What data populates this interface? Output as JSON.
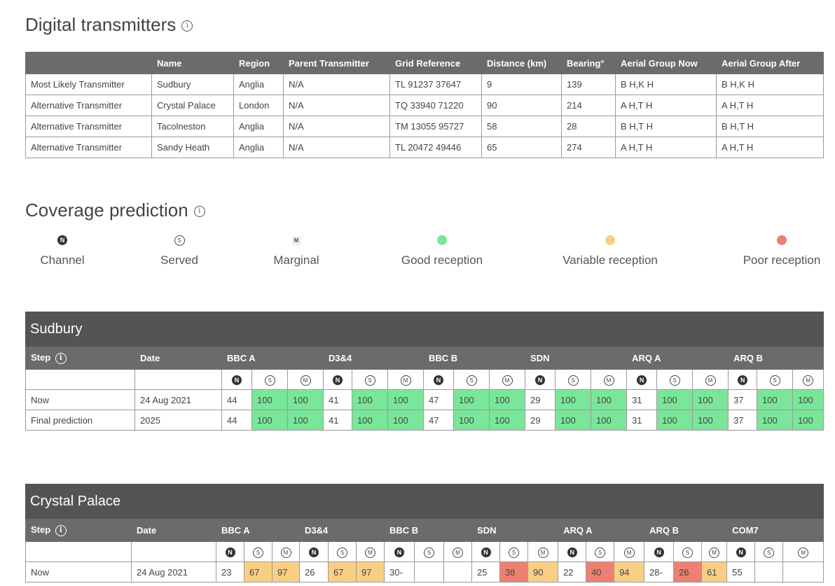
{
  "digital": {
    "title": "Digital transmitters",
    "headers": [
      "",
      "Name",
      "Region",
      "Parent Transmitter",
      "Grid Reference",
      "Distance (km)",
      "Bearing°",
      "Aerial Group Now",
      "Aerial Group After"
    ],
    "rows": [
      [
        "Most Likely Transmitter",
        "Sudbury",
        "Anglia",
        "N/A",
        "TL 91237 37647",
        "9",
        "139",
        "B H,K H",
        "B H,K H"
      ],
      [
        "Alternative Transmitter",
        "Crystal Palace",
        "London",
        "N/A",
        "TQ 33940 71220",
        "90",
        "214",
        "A H,T H",
        "A H,T H"
      ],
      [
        "Alternative Transmitter",
        "Tacolneston",
        "Anglia",
        "N/A",
        "TM 13055 95727",
        "58",
        "28",
        "B H,T H",
        "B H,T H"
      ],
      [
        "Alternative Transmitter",
        "Sandy Heath",
        "Anglia",
        "N/A",
        "TL 20472 49446",
        "65",
        "274",
        "A H,T H",
        "A H,T H"
      ]
    ]
  },
  "coverage": {
    "title": "Coverage prediction",
    "legend": {
      "channel": "Channel",
      "served": "Served",
      "marginal": "Marginal",
      "good": "Good reception",
      "variable": "Variable reception",
      "poor": "Poor reception"
    },
    "colors": {
      "good": "#7ae69a",
      "variable": "#f9cf86",
      "poor": "#ee8072"
    }
  },
  "sudbury": {
    "title": "Sudbury",
    "step_label": "Step",
    "date_label": "Date",
    "muxes": [
      "BBC A",
      "D3&4",
      "BBC B",
      "SDN",
      "ARQ A",
      "ARQ B"
    ],
    "rows": [
      {
        "step": "Now",
        "date": "24 Aug 2021",
        "cells": [
          "44",
          "100",
          "100",
          "41",
          "100",
          "100",
          "47",
          "100",
          "100",
          "29",
          "100",
          "100",
          "31",
          "100",
          "100",
          "37",
          "100",
          "100"
        ]
      },
      {
        "step": "Final prediction",
        "date": "2025",
        "cells": [
          "44",
          "100",
          "100",
          "41",
          "100",
          "100",
          "47",
          "100",
          "100",
          "29",
          "100",
          "100",
          "31",
          "100",
          "100",
          "37",
          "100",
          "100"
        ]
      }
    ]
  },
  "crystal": {
    "title": "Crystal Palace",
    "step_label": "Step",
    "date_label": "Date",
    "muxes": [
      "BBC A",
      "D3&4",
      "BBC B",
      "SDN",
      "ARQ A",
      "ARQ B",
      "COM7"
    ],
    "rows": [
      {
        "step": "Now",
        "date": "24 Aug 2021",
        "cells": [
          "23",
          "67",
          "97",
          "26",
          "67",
          "97",
          "30-",
          "",
          "",
          "25",
          "38",
          "90",
          "22",
          "40",
          "94",
          "28-",
          "26",
          "61",
          "55",
          "",
          ""
        ]
      }
    ]
  }
}
